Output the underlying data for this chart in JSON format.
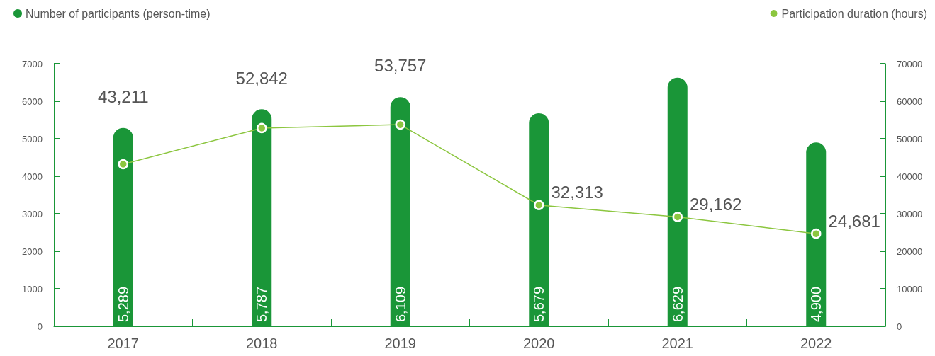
{
  "chart_data": {
    "type": "bar",
    "categories": [
      "2017",
      "2018",
      "2019",
      "2020",
      "2021",
      "2022"
    ],
    "series": [
      {
        "name": "Number of participants (person-time)",
        "color": "#1a9638",
        "values": [
          5289,
          5787,
          6109,
          5679,
          6629,
          4900
        ],
        "value_labels": [
          "5,289",
          "5,787",
          "6,109",
          "5,679",
          "6,629",
          "4,900"
        ]
      },
      {
        "name": "Participation duration (hours)",
        "type": "line",
        "axis": "y2",
        "color": "#8cc63f",
        "marker": "circle",
        "values": [
          43211,
          52842,
          53757,
          32313,
          29162,
          24681
        ],
        "value_labels": [
          "43,211",
          "52,842",
          "53,757",
          "32,313",
          "29,162",
          "24,681"
        ]
      }
    ],
    "ylim": [
      0,
      7000
    ],
    "yticks": [
      0,
      1000,
      2000,
      3000,
      4000,
      5000,
      6000,
      7000
    ],
    "y2lim": [
      0,
      70000
    ],
    "y2ticks": [
      0,
      10000,
      20000,
      30000,
      40000,
      50000,
      60000,
      70000
    ],
    "grid": false,
    "legend": "top"
  }
}
